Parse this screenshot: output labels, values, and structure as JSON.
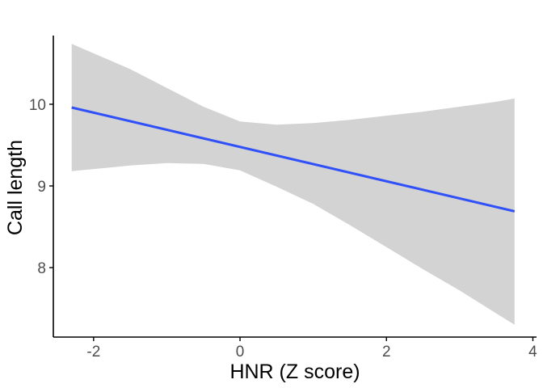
{
  "chart_data": {
    "type": "line",
    "title": "",
    "xlabel": "HNR (Z score)",
    "ylabel": "Call length",
    "xlim": [
      -2.55,
      4.05
    ],
    "ylim": [
      7.15,
      10.9
    ],
    "x_ticks": [
      -2,
      0,
      2,
      4
    ],
    "y_ticks": [
      8,
      9,
      10
    ],
    "grid": false,
    "legend": "none",
    "series": [
      {
        "values_x": [
          -2.3,
          3.75
        ],
        "values_y": [
          9.96,
          8.69
        ]
      }
    ],
    "confidence_band": {
      "x": [
        -2.3,
        -1.5,
        -1.0,
        -0.5,
        0.0,
        0.5,
        1.0,
        1.5,
        2.0,
        2.5,
        3.0,
        3.5,
        3.75
      ],
      "upper": [
        10.74,
        10.43,
        10.2,
        9.97,
        9.79,
        9.75,
        9.77,
        9.81,
        9.86,
        9.91,
        9.97,
        10.03,
        10.07
      ],
      "lower": [
        9.18,
        9.25,
        9.28,
        9.27,
        9.19,
        8.99,
        8.78,
        8.52,
        8.25,
        7.98,
        7.72,
        7.44,
        7.3
      ]
    },
    "colors": {
      "line": "#3050f8",
      "band": "#d3d3d3",
      "axis": "#000000",
      "tick_text": "#4d4d4d"
    }
  }
}
